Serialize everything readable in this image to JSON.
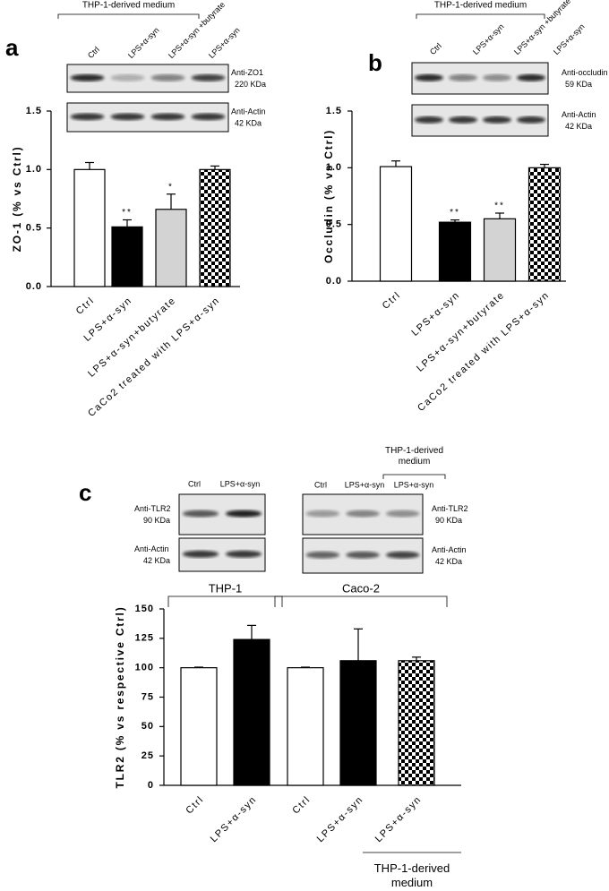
{
  "chart_data": [
    {
      "type": "bar",
      "panel_label": "a",
      "ylabel": "ZO-1 (% vs Ctrl)",
      "categories": [
        "Ctrl",
        "LPS+α-syn",
        "LPS+α-syn+butyrate",
        "CaCo2 treated with LPS+α-syn"
      ],
      "values": [
        1.0,
        0.51,
        0.66,
        1.0
      ],
      "errors": [
        0.06,
        0.06,
        0.13,
        0.03
      ],
      "significance": [
        null,
        "**",
        "*",
        null
      ],
      "bar_fills": [
        "white",
        "black",
        "lightgray",
        "checkerboard"
      ],
      "ylim": [
        0,
        1.5
      ],
      "yticks": [
        {
          "value": 0,
          "label": "0.0"
        },
        0.5,
        {
          "value": 1,
          "label": "1.0"
        },
        1.5
      ],
      "blots": [
        {
          "header": "THP-1-derived medium",
          "lanes": [
            "Ctrl",
            "LPS+α-syn",
            "LPS+α-syn +butyrate",
            "LPS+α-syn"
          ],
          "rows": [
            {
              "antibody": "Anti-ZO1",
              "size": "220 KDa"
            },
            {
              "antibody": "Anti-Actin",
              "size": "42 KDa"
            }
          ]
        }
      ]
    },
    {
      "type": "bar",
      "panel_label": "b",
      "ylabel": "Occludin (% vs Ctrl)",
      "categories": [
        "Ctrl",
        "LPS+α-syn",
        "LPS+α-syn+butyrate",
        "CaCo2 treated with LPS+α-syn"
      ],
      "values": [
        1.01,
        0.52,
        0.55,
        1.0
      ],
      "errors": [
        0.05,
        0.02,
        0.05,
        0.03
      ],
      "significance": [
        null,
        "**",
        "**",
        null
      ],
      "bar_fills": [
        "white",
        "black",
        "lightgray",
        "checkerboard"
      ],
      "ylim": [
        0,
        1.5
      ],
      "yticks": [
        {
          "value": 0,
          "label": "0.0"
        },
        0.5,
        {
          "value": 1,
          "label": "1.0"
        },
        1.5
      ],
      "blots": [
        {
          "header": "THP-1-derived medium",
          "lanes": [
            "Ctrl",
            "LPS+α-syn",
            "LPS+α-syn +butyrate",
            "LPS+α-syn"
          ],
          "rows": [
            {
              "antibody": "Anti-occludin",
              "size": "59 KDa"
            },
            {
              "antibody": "Anti-Actin",
              "size": "42 KDa"
            }
          ]
        }
      ]
    },
    {
      "type": "bar",
      "panel_label": "c",
      "ylabel": "TLR2 (% vs respective Ctrl)",
      "categories": [
        "Ctrl",
        "LPS+α-syn",
        "Ctrl",
        "LPS+α-syn",
        "LPS+α-syn"
      ],
      "values": [
        100,
        124,
        100,
        106,
        106
      ],
      "errors": [
        0.5,
        12,
        0.5,
        27,
        3
      ],
      "bar_fills": [
        "white",
        "black",
        "white",
        "black",
        "checkerboard"
      ],
      "ylim": [
        0,
        150
      ],
      "yticks": [
        0,
        25,
        50,
        75,
        100,
        125,
        150
      ],
      "groups": [
        "THP-1",
        "Caco-2"
      ],
      "footer": "THP-1-derived medium",
      "blots": [
        {
          "lanes": [
            "Ctrl",
            "LPS+α-syn"
          ],
          "rows": [
            {
              "antibody": "Anti-TLR2",
              "size": "90 KDa"
            },
            {
              "antibody": "Anti-Actin",
              "size": "42 KDa"
            }
          ]
        },
        {
          "header": "THP-1-derived medium",
          "lanes": [
            "Ctrl",
            "LPS+α-syn",
            "LPS+α-syn"
          ],
          "rows": [
            {
              "antibody": "Anti-TLR2",
              "size": "90 KDa"
            },
            {
              "antibody": "Anti-Actin",
              "size": "42 KDa"
            }
          ]
        }
      ]
    }
  ]
}
